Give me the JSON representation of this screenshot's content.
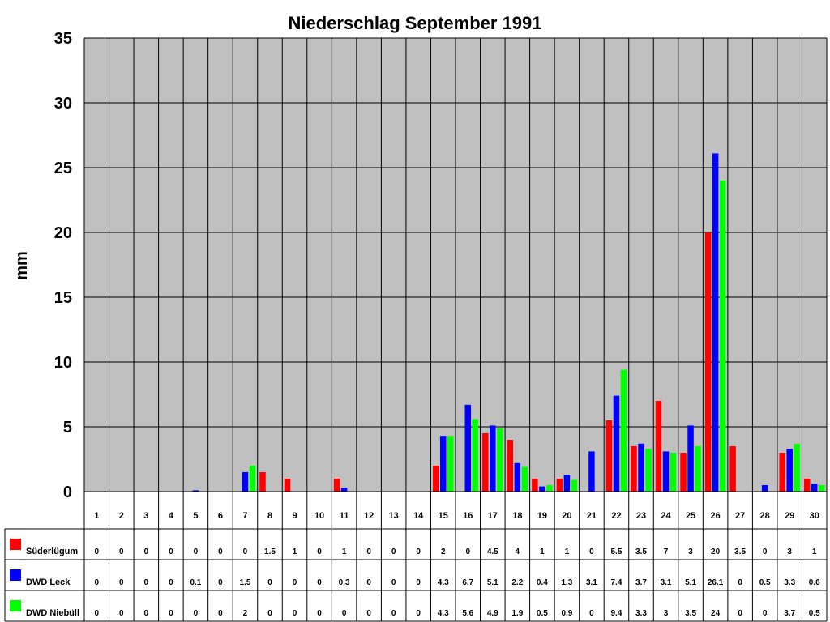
{
  "chart_data": {
    "type": "bar",
    "title": "Niederschlag September 1991",
    "xlabel": "",
    "ylabel": "mm",
    "ylim": [
      0,
      35
    ],
    "yticks": [
      0,
      5,
      10,
      15,
      20,
      25,
      30,
      35
    ],
    "grid": true,
    "legend": "bottom-left data table",
    "categories": [
      "1",
      "2",
      "3",
      "4",
      "5",
      "6",
      "7",
      "8",
      "9",
      "10",
      "11",
      "12",
      "13",
      "14",
      "15",
      "16",
      "17",
      "18",
      "19",
      "20",
      "21",
      "22",
      "23",
      "24",
      "25",
      "26",
      "27",
      "28",
      "29",
      "30"
    ],
    "series": [
      {
        "name": "Süderlügum",
        "color": "#ff0000",
        "values": [
          0,
          0,
          0,
          0,
          0,
          0,
          0,
          1.5,
          1,
          0,
          1,
          0,
          0,
          0,
          2,
          0,
          4.5,
          4,
          1,
          1,
          0,
          5.5,
          3.5,
          7,
          3,
          20,
          3.5,
          0,
          3,
          1
        ]
      },
      {
        "name": "DWD Leck",
        "color": "#0000ff",
        "values": [
          0,
          0,
          0,
          0,
          0.1,
          0,
          1.5,
          0,
          0,
          0,
          0.3,
          0,
          0,
          0,
          4.3,
          6.7,
          5.1,
          2.2,
          0.4,
          1.3,
          3.1,
          7.4,
          3.7,
          3.1,
          5.1,
          26.1,
          0,
          0.5,
          3.3,
          0.6
        ]
      },
      {
        "name": "DWD Niebüll",
        "color": "#00ff00",
        "values": [
          0,
          0,
          0,
          0,
          0,
          0,
          2,
          0,
          0,
          0,
          0,
          0,
          0,
          0,
          4.3,
          5.6,
          4.9,
          1.9,
          0.5,
          0.9,
          0,
          9.4,
          3.3,
          3,
          3.5,
          24,
          0,
          0,
          3.7,
          0.5
        ]
      }
    ]
  },
  "style": {
    "plot_background": "#c0c0c0",
    "grid_color": "#000000"
  }
}
